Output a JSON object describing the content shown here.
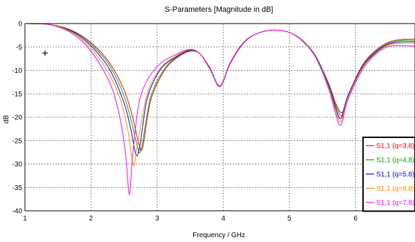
{
  "chart_data": {
    "type": "line",
    "title": "S-Parameters [Magnitude in dB]",
    "xlabel": "Frequency / GHz",
    "ylabel": "dB",
    "xlim": [
      1,
      6.9
    ],
    "ylim": [
      -40,
      0
    ],
    "xticks": [
      "1",
      "2",
      "3",
      "4",
      "5",
      "6"
    ],
    "xtick_values": [
      1,
      2,
      3,
      4,
      5,
      6
    ],
    "yticks": [
      "0",
      "-5",
      "-10",
      "-15",
      "-20",
      "-25",
      "-30",
      "-35",
      "-40"
    ],
    "ytick_values": [
      0,
      -5,
      -10,
      -15,
      -20,
      -25,
      -30,
      -35,
      -40
    ],
    "grid": true,
    "legend_position": "bottom-right",
    "series": [
      {
        "name": "S1,1 (q=3.8)",
        "color": "#ff0000",
        "x": [
          1,
          1.3,
          1.5,
          1.7,
          1.9,
          2.1,
          2.3,
          2.5,
          2.62,
          2.72,
          2.78,
          2.9,
          3.1,
          3.3,
          3.5,
          3.65,
          3.8,
          3.95,
          4.1,
          4.3,
          4.5,
          4.75,
          5.0,
          5.2,
          5.4,
          5.6,
          5.7,
          5.8,
          5.9,
          6.1,
          6.3,
          6.5,
          6.7,
          6.9
        ],
        "y": [
          0,
          -0.1,
          -0.5,
          -1.4,
          -3.0,
          -5.4,
          -8.8,
          -14.2,
          -19.5,
          -25.5,
          -26.5,
          -16.5,
          -10.2,
          -7.3,
          -5.9,
          -6.5,
          -9.5,
          -13.3,
          -8.5,
          -4.2,
          -2.2,
          -1.4,
          -1.9,
          -3.6,
          -7.0,
          -13.0,
          -17.0,
          -19.0,
          -15.0,
          -9.0,
          -5.8,
          -4.0,
          -3.4,
          -3.3
        ]
      },
      {
        "name": "S1,1 (q=4.8)",
        "color": "#00aa00",
        "x": [
          1,
          1.3,
          1.5,
          1.7,
          1.9,
          2.1,
          2.3,
          2.5,
          2.62,
          2.7,
          2.76,
          2.9,
          3.1,
          3.3,
          3.5,
          3.65,
          3.8,
          3.95,
          4.1,
          4.3,
          4.5,
          4.75,
          5.0,
          5.2,
          5.4,
          5.6,
          5.7,
          5.8,
          5.9,
          6.1,
          6.3,
          6.5,
          6.7,
          6.9
        ],
        "y": [
          0,
          -0.1,
          -0.5,
          -1.5,
          -3.2,
          -5.8,
          -9.4,
          -15.5,
          -21.5,
          -26.2,
          -26.8,
          -15.8,
          -9.9,
          -7.1,
          -5.8,
          -6.5,
          -9.6,
          -13.3,
          -8.6,
          -4.2,
          -2.2,
          -1.4,
          -1.9,
          -3.6,
          -7.0,
          -13.2,
          -17.5,
          -19.6,
          -15.2,
          -9.2,
          -6.0,
          -4.2,
          -3.6,
          -3.6
        ]
      },
      {
        "name": "S1,1 (q=5.8)",
        "color": "#0000dd",
        "x": [
          1,
          1.3,
          1.5,
          1.7,
          1.9,
          2.1,
          2.3,
          2.5,
          2.6,
          2.68,
          2.74,
          2.85,
          3.05,
          3.3,
          3.5,
          3.65,
          3.8,
          3.95,
          4.1,
          4.3,
          4.5,
          4.75,
          5.0,
          5.2,
          5.4,
          5.6,
          5.7,
          5.78,
          5.88,
          6.1,
          6.3,
          6.5,
          6.7,
          6.9
        ],
        "y": [
          0,
          -0.1,
          -0.6,
          -1.6,
          -3.5,
          -6.3,
          -10.3,
          -17.0,
          -22.5,
          -28.0,
          -26.0,
          -16.0,
          -9.8,
          -7.0,
          -5.7,
          -6.5,
          -9.6,
          -13.4,
          -8.6,
          -4.2,
          -2.2,
          -1.4,
          -1.9,
          -3.7,
          -7.1,
          -13.5,
          -18.0,
          -20.2,
          -15.6,
          -9.4,
          -6.2,
          -4.4,
          -3.9,
          -3.9
        ]
      },
      {
        "name": "S1,1 (q=6.8)",
        "color": "#ff8800",
        "x": [
          1,
          1.3,
          1.5,
          1.7,
          1.9,
          2.1,
          2.3,
          2.45,
          2.56,
          2.64,
          2.7,
          2.85,
          3.05,
          3.3,
          3.5,
          3.65,
          3.8,
          3.95,
          4.1,
          4.3,
          4.5,
          4.75,
          5.0,
          5.2,
          5.4,
          5.6,
          5.7,
          5.78,
          5.88,
          6.1,
          6.3,
          6.5,
          6.7,
          6.9
        ],
        "y": [
          0,
          -0.1,
          -0.6,
          -1.8,
          -3.9,
          -7.0,
          -11.5,
          -16.5,
          -23.0,
          -30.3,
          -26.0,
          -15.0,
          -9.5,
          -6.8,
          -5.6,
          -6.5,
          -9.7,
          -13.4,
          -8.7,
          -4.3,
          -2.2,
          -1.4,
          -1.9,
          -3.7,
          -7.2,
          -13.8,
          -18.6,
          -20.9,
          -16.0,
          -9.6,
          -6.4,
          -4.6,
          -4.2,
          -4.2
        ]
      },
      {
        "name": "S1,1 (q=7.8)",
        "color": "#ff00ff",
        "x": [
          1,
          1.3,
          1.5,
          1.7,
          1.9,
          2.1,
          2.3,
          2.42,
          2.52,
          2.58,
          2.63,
          2.75,
          3.0,
          3.3,
          3.5,
          3.65,
          3.8,
          3.95,
          4.1,
          4.3,
          4.5,
          4.75,
          5.0,
          5.2,
          5.4,
          5.6,
          5.7,
          5.78,
          5.88,
          6.1,
          6.3,
          6.5,
          6.7,
          6.9
        ],
        "y": [
          0,
          -0.1,
          -0.7,
          -2.0,
          -4.3,
          -7.9,
          -13.2,
          -19.0,
          -27.5,
          -36.5,
          -28.0,
          -15.5,
          -9.2,
          -6.5,
          -5.5,
          -6.5,
          -9.8,
          -13.5,
          -8.7,
          -4.3,
          -2.2,
          -1.4,
          -1.9,
          -3.8,
          -7.3,
          -14.2,
          -19.3,
          -21.7,
          -16.5,
          -10.0,
          -6.6,
          -4.9,
          -4.7,
          -4.8
        ]
      }
    ],
    "annotation": "+"
  }
}
